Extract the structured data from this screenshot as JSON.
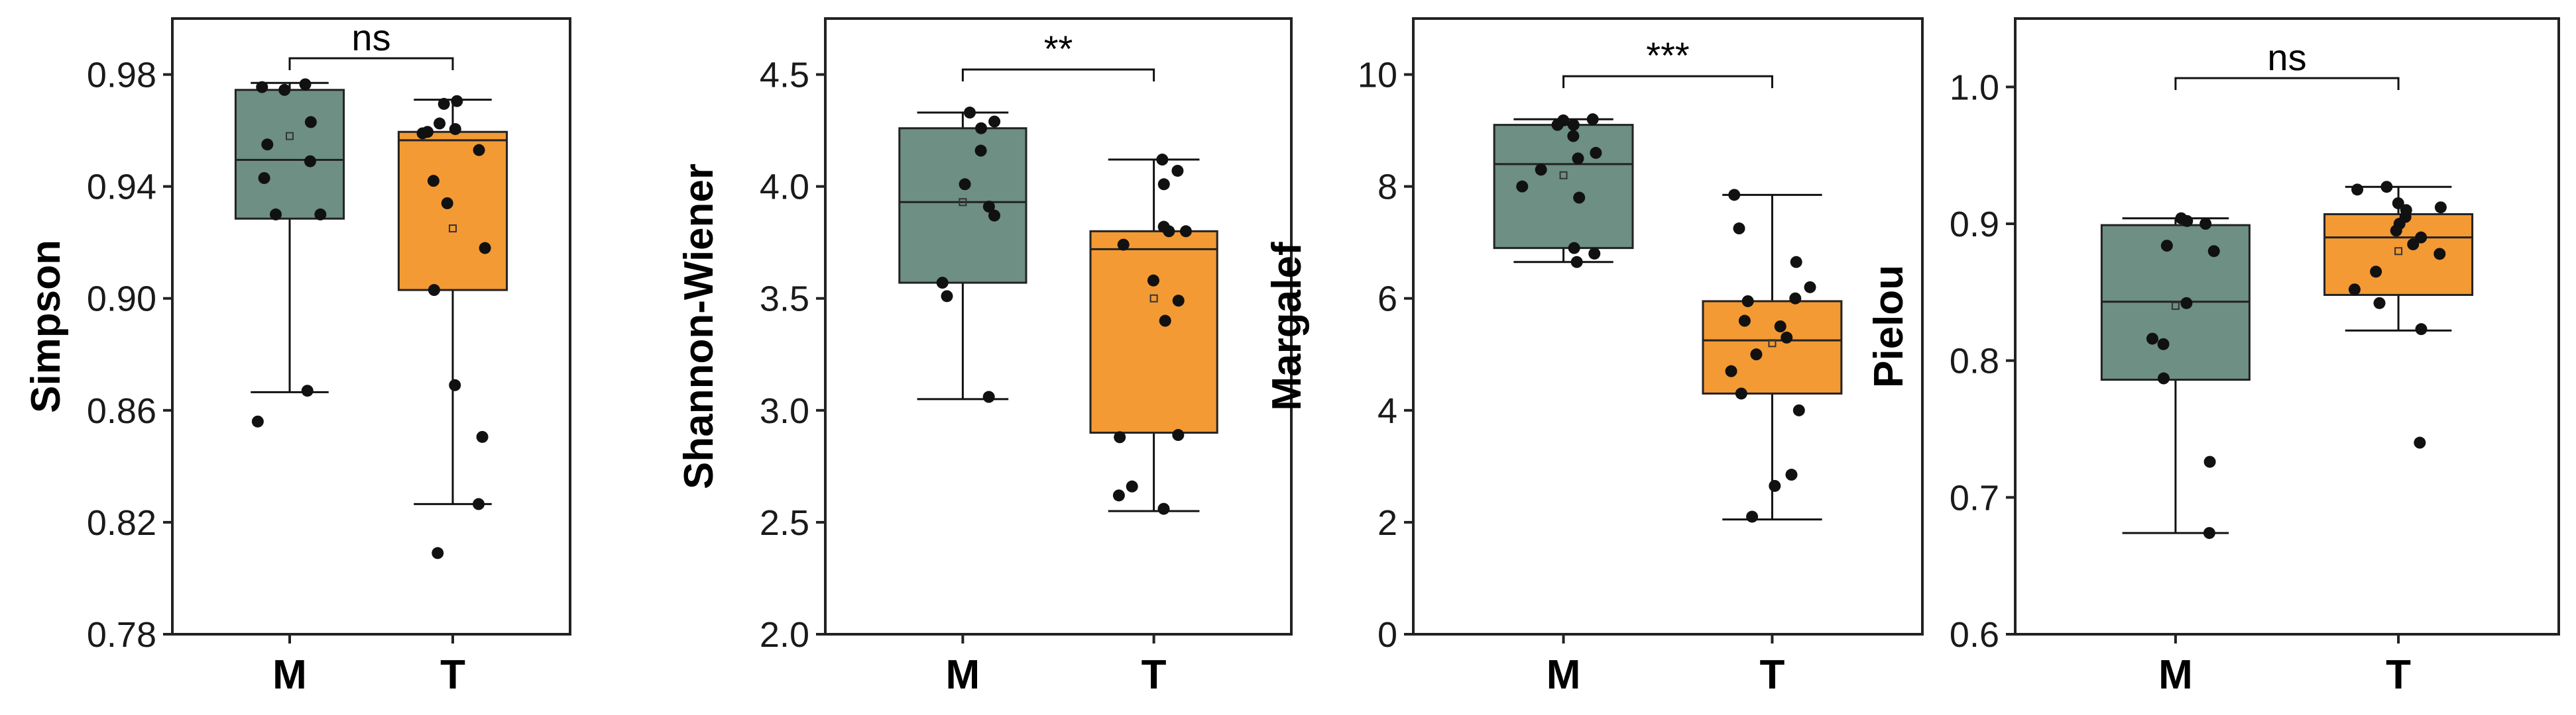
{
  "colors": {
    "M": "#6e8f83",
    "T": "#f39a34",
    "point": "#111111",
    "frame": "#222222"
  },
  "chart_data": [
    {
      "type": "box",
      "ylabel": "Simpson",
      "categories": [
        "M",
        "T"
      ],
      "ylim": [
        0.78,
        1.0
      ],
      "yticks": [
        0.78,
        0.82,
        0.86,
        0.9,
        0.94,
        0.98
      ],
      "ytick_labels": [
        "0.78",
        "0.82",
        "0.86",
        "0.90",
        "0.94",
        "0.98"
      ],
      "significance": "ns",
      "boxes": [
        {
          "name": "M",
          "whisker_low": 0.8665,
          "q1": 0.9285,
          "median": 0.9495,
          "q3": 0.9745,
          "whisker_high": 0.977,
          "mean": 0.958,
          "points": [
            0.9765,
            0.9755,
            0.9745,
            0.963,
            0.955,
            0.949,
            0.943,
            0.93,
            0.93,
            0.867,
            0.856
          ]
        },
        {
          "name": "T",
          "whisker_low": 0.8265,
          "q1": 0.903,
          "median": 0.9565,
          "q3": 0.9595,
          "whisker_high": 0.971,
          "mean": 0.925,
          "points": [
            0.9705,
            0.9695,
            0.9625,
            0.9605,
            0.9595,
            0.959,
            0.953,
            0.942,
            0.934,
            0.918,
            0.903,
            0.869,
            0.8505,
            0.8265,
            0.809
          ]
        }
      ]
    },
    {
      "type": "box",
      "ylabel": "Shannon-Wiener",
      "categories": [
        "M",
        "T"
      ],
      "ylim": [
        2.0,
        4.75
      ],
      "yticks": [
        2.0,
        2.5,
        3.0,
        3.5,
        4.0,
        4.5
      ],
      "ytick_labels": [
        "2.0",
        "2.5",
        "3.0",
        "3.5",
        "4.0",
        "4.5"
      ],
      "significance": "**",
      "boxes": [
        {
          "name": "M",
          "whisker_low": 3.05,
          "q1": 3.57,
          "median": 3.93,
          "q3": 4.26,
          "whisker_high": 4.33,
          "mean": 3.93,
          "points": [
            4.33,
            4.29,
            4.26,
            4.16,
            4.01,
            3.91,
            3.87,
            3.57,
            3.51,
            3.06
          ]
        },
        {
          "name": "T",
          "whisker_low": 2.55,
          "q1": 2.9,
          "median": 3.72,
          "q3": 3.8,
          "whisker_high": 4.12,
          "mean": 3.5,
          "points": [
            4.12,
            4.07,
            4.01,
            3.82,
            3.8,
            3.8,
            3.74,
            3.58,
            3.49,
            3.4,
            2.89,
            2.88,
            2.66,
            2.62,
            2.56
          ]
        }
      ]
    },
    {
      "type": "box",
      "ylabel": "Margalef",
      "categories": [
        "M",
        "T"
      ],
      "ylim": [
        0,
        11
      ],
      "yticks": [
        0,
        2,
        4,
        6,
        8,
        10
      ],
      "ytick_labels": [
        "0",
        "2",
        "4",
        "6",
        "8",
        "10"
      ],
      "significance": "***",
      "boxes": [
        {
          "name": "M",
          "whisker_low": 6.65,
          "q1": 6.9,
          "median": 8.4,
          "q3": 9.1,
          "whisker_high": 9.2,
          "mean": 8.2,
          "points": [
            9.2,
            9.18,
            9.1,
            9.1,
            8.9,
            8.6,
            8.5,
            8.3,
            8.0,
            7.8,
            6.9,
            6.8,
            6.65
          ]
        },
        {
          "name": "T",
          "whisker_low": 2.05,
          "q1": 4.3,
          "median": 5.25,
          "q3": 5.95,
          "whisker_high": 7.85,
          "mean": 5.2,
          "points": [
            7.85,
            7.25,
            6.65,
            6.2,
            6.0,
            5.95,
            5.6,
            5.5,
            5.3,
            5.0,
            4.7,
            4.3,
            4.0,
            2.85,
            2.65,
            2.1
          ]
        }
      ]
    },
    {
      "type": "box",
      "ylabel": "Pielou",
      "categories": [
        "M",
        "T"
      ],
      "ylim": [
        0.6,
        1.05
      ],
      "yticks": [
        0.6,
        0.7,
        0.8,
        0.9,
        1.0
      ],
      "ytick_labels": [
        "0.6",
        "0.7",
        "0.8",
        "0.9",
        "1.0"
      ],
      "significance": "ns",
      "boxes": [
        {
          "name": "M",
          "whisker_low": 0.674,
          "q1": 0.786,
          "median": 0.843,
          "q3": 0.899,
          "whisker_high": 0.904,
          "mean": 0.84,
          "points": [
            0.904,
            0.902,
            0.9,
            0.884,
            0.88,
            0.842,
            0.816,
            0.812,
            0.787,
            0.726,
            0.674
          ]
        },
        {
          "name": "T",
          "whisker_low": 0.822,
          "q1": 0.848,
          "median": 0.89,
          "q3": 0.907,
          "whisker_high": 0.927,
          "mean": 0.88,
          "points": [
            0.927,
            0.925,
            0.915,
            0.912,
            0.91,
            0.905,
            0.9,
            0.895,
            0.89,
            0.885,
            0.878,
            0.865,
            0.852,
            0.842,
            0.823,
            0.74
          ]
        }
      ]
    }
  ]
}
